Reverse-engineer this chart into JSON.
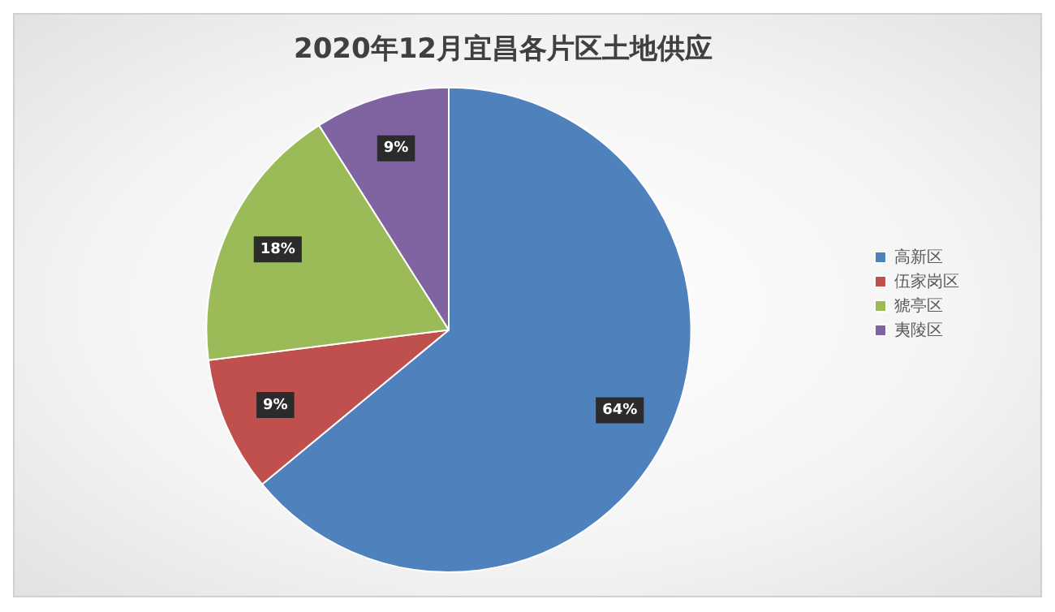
{
  "chart_data": {
    "type": "pie",
    "title": "2020年12月宜昌各片区土地供应",
    "categories": [
      "高新区",
      "伍家岗区",
      "猇亭区",
      "夷陵区"
    ],
    "values": [
      64,
      9,
      18,
      9
    ],
    "colors": [
      "#4f81bd",
      "#c0504d",
      "#9bbb59",
      "#8064a2"
    ],
    "value_labels": [
      "64%",
      "9%",
      "18%",
      "9%"
    ],
    "legend": "right"
  }
}
